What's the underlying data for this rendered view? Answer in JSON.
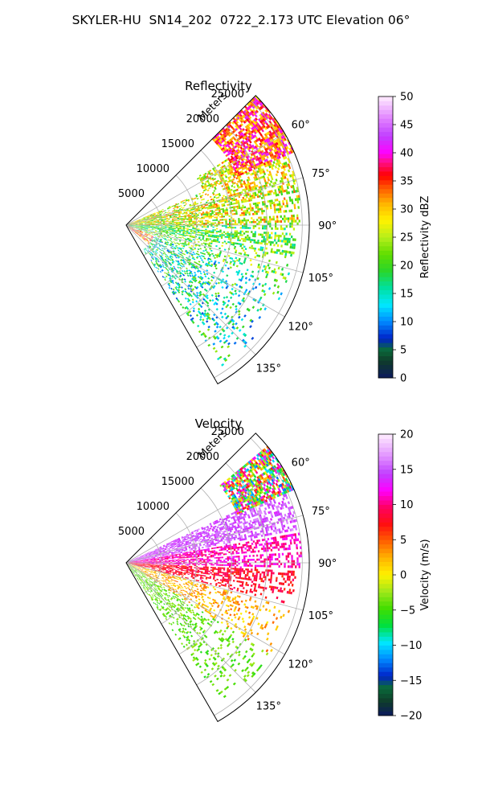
{
  "figure": {
    "suptitle": "SKYLER-HU  SN14_202  0722_2.173 UTC Elevation 06°"
  },
  "chart_data": [
    {
      "type": "heatmap",
      "projection": "polar-sector",
      "title": "Reflectivity",
      "radial_axis_label": "Meters",
      "radial_ticks": [
        5000,
        10000,
        15000,
        20000,
        25000
      ],
      "radial_tick_labels": [
        "5000",
        "10000",
        "15000",
        "20000",
        "25000"
      ],
      "range_max": 26000,
      "azimuth_range": [
        45,
        150
      ],
      "azimuth_ticks": [
        60,
        75,
        90,
        105,
        120,
        135
      ],
      "azimuth_tick_labels": [
        "60°",
        "75°",
        "90°",
        "105°",
        "120°",
        "135°"
      ],
      "grid": true,
      "colorbar": {
        "label": "Reflectivity dBZ",
        "vmin": 0,
        "vmax": 50,
        "ticks": [
          0,
          5,
          10,
          15,
          20,
          25,
          30,
          35,
          40,
          45,
          50
        ],
        "tick_labels": [
          "0",
          "5",
          "10",
          "15",
          "20",
          "25",
          "30",
          "35",
          "40",
          "45",
          "50"
        ],
        "stops": [
          [
            0,
            "#0b1a5e"
          ],
          [
            0.06,
            "#0f3b2a"
          ],
          [
            0.1,
            "#0a6b3a"
          ],
          [
            0.14,
            "#0022c8"
          ],
          [
            0.2,
            "#0088ff"
          ],
          [
            0.26,
            "#00e8ff"
          ],
          [
            0.32,
            "#00e0a0"
          ],
          [
            0.38,
            "#29d62a"
          ],
          [
            0.44,
            "#60dd00"
          ],
          [
            0.5,
            "#b6ef1a"
          ],
          [
            0.56,
            "#fff200"
          ],
          [
            0.62,
            "#ffb400"
          ],
          [
            0.68,
            "#ff5000"
          ],
          [
            0.72,
            "#ff0000"
          ],
          [
            0.77,
            "#ff1090"
          ],
          [
            0.8,
            "#ff00ff"
          ],
          [
            0.86,
            "#c040ff"
          ],
          [
            0.92,
            "#e080ff"
          ],
          [
            1,
            "#ffeeff"
          ]
        ]
      },
      "echo_regions": [
        {
          "az": [
            45,
            66
          ],
          "r": [
            17000,
            26000
          ],
          "value_range": [
            28,
            42
          ]
        },
        {
          "az": [
            55,
            75
          ],
          "r": [
            12000,
            25000
          ],
          "value_range": [
            20,
            34
          ]
        },
        {
          "az": [
            66,
            90
          ],
          "r": [
            0,
            25000
          ],
          "value_range": [
            18,
            34
          ]
        },
        {
          "az": [
            88,
            110
          ],
          "r": [
            0,
            24000
          ],
          "value_range": [
            14,
            28
          ]
        },
        {
          "az": [
            105,
            145
          ],
          "r": [
            4000,
            24000
          ],
          "value_range": [
            8,
            24
          ]
        },
        {
          "az": [
            85,
            130
          ],
          "r": [
            0,
            4500
          ],
          "value_range": [
            26,
            40
          ]
        }
      ]
    },
    {
      "type": "heatmap",
      "projection": "polar-sector",
      "title": "Velocity",
      "radial_axis_label": "Meters",
      "radial_ticks": [
        5000,
        10000,
        15000,
        20000,
        25000
      ],
      "radial_tick_labels": [
        "5000",
        "10000",
        "15000",
        "20000",
        "25000"
      ],
      "range_max": 26000,
      "azimuth_range": [
        45,
        150
      ],
      "azimuth_ticks": [
        60,
        75,
        90,
        105,
        120,
        135
      ],
      "azimuth_tick_labels": [
        "60°",
        "75°",
        "90°",
        "105°",
        "120°",
        "135°"
      ],
      "grid": true,
      "colorbar": {
        "label": "Velocity (m/s)",
        "vmin": -20,
        "vmax": 20,
        "ticks": [
          -20,
          -15,
          -10,
          -5,
          0,
          5,
          10,
          15,
          20
        ],
        "tick_labels": [
          "−20",
          "−15",
          "−10",
          "−5",
          "0",
          "5",
          "10",
          "15",
          "20"
        ],
        "stops": [
          [
            0,
            "#0b1a5e"
          ],
          [
            0.05,
            "#0f3b2a"
          ],
          [
            0.1,
            "#0a6b3a"
          ],
          [
            0.14,
            "#0022c8"
          ],
          [
            0.2,
            "#0088ff"
          ],
          [
            0.26,
            "#00e8ff"
          ],
          [
            0.32,
            "#00e040"
          ],
          [
            0.38,
            "#40dd00"
          ],
          [
            0.44,
            "#9ee81a"
          ],
          [
            0.5,
            "#fff200"
          ],
          [
            0.56,
            "#ffb400"
          ],
          [
            0.62,
            "#ff6000"
          ],
          [
            0.68,
            "#ff1010"
          ],
          [
            0.74,
            "#ff0060"
          ],
          [
            0.8,
            "#ff00ff"
          ],
          [
            0.86,
            "#c040ff"
          ],
          [
            0.92,
            "#e090ff"
          ],
          [
            1,
            "#ffeeff"
          ]
        ]
      },
      "echo_regions": [
        {
          "az": [
            50,
            66
          ],
          "r": [
            17000,
            26000
          ],
          "value_range": [
            -13,
            15
          ]
        },
        {
          "az": [
            64,
            80
          ],
          "r": [
            0,
            25000
          ],
          "value_range": [
            13,
            17
          ]
        },
        {
          "az": [
            80,
            92
          ],
          "r": [
            0,
            25000
          ],
          "value_range": [
            9,
            13
          ]
        },
        {
          "az": [
            92,
            104
          ],
          "r": [
            0,
            24000
          ],
          "value_range": [
            6,
            10
          ]
        },
        {
          "az": [
            104,
            122
          ],
          "r": [
            0,
            24000
          ],
          "value_range": [
            0,
            5
          ]
        },
        {
          "az": [
            122,
            145
          ],
          "r": [
            0,
            24000
          ],
          "value_range": [
            -6,
            -2
          ]
        }
      ]
    }
  ]
}
